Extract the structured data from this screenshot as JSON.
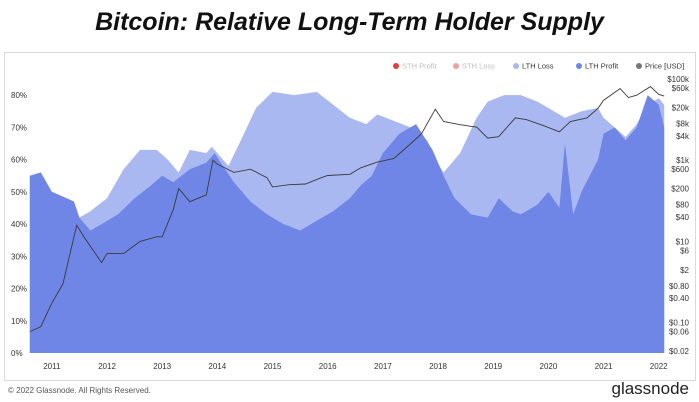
{
  "title": "Bitcoin: Relative Long-Term Holder Supply",
  "footer": {
    "copyright": "© 2022 Glassnode. All Rights Reserved.",
    "brand": "glassnode"
  },
  "watermark": "glassnode",
  "colors": {
    "sth_profit": "#e03c3c",
    "sth_loss": "#f2a0a0",
    "lth_loss": "#a9b8f1",
    "lth_profit": "#6f86e6",
    "price": "#3a3a3a"
  },
  "chart_data": {
    "type": "area",
    "title": "Bitcoin: Relative Long-Term Holder Supply",
    "legend": [
      "STH Profit",
      "STH Loss",
      "LTH Loss",
      "LTH Profit",
      "Price [USD]"
    ],
    "legend_position": "top-right",
    "x_ticks": [
      "2011",
      "2012",
      "2013",
      "2014",
      "2015",
      "2016",
      "2017",
      "2018",
      "2019",
      "2020",
      "2021",
      "2022"
    ],
    "y_left_ticks": [
      "0%",
      "10%",
      "20%",
      "30%",
      "40%",
      "50%",
      "60%",
      "70%",
      "80%"
    ],
    "y_right_ticks": [
      "$100k",
      "$60k",
      "$20k",
      "$8k",
      "$4k",
      "$1k",
      "$600",
      "$200",
      "$80",
      "$40",
      "$10",
      "$6",
      "$2",
      "$0.80",
      "$0.40",
      "$0.10",
      "$0.06",
      "$0.02"
    ],
    "y_left_range": [
      0,
      85
    ],
    "y_right_scale": "log",
    "grid": false,
    "series": [
      {
        "name": "LTH Loss",
        "type": "stacked-area",
        "points": [
          [
            2010.6,
            55
          ],
          [
            2010.8,
            56
          ],
          [
            2011.0,
            50
          ],
          [
            2011.4,
            47
          ],
          [
            2011.5,
            42
          ],
          [
            2011.7,
            44
          ],
          [
            2012.0,
            48
          ],
          [
            2012.3,
            57
          ],
          [
            2012.6,
            63
          ],
          [
            2012.9,
            63
          ],
          [
            2013.1,
            60
          ],
          [
            2013.3,
            56
          ],
          [
            2013.5,
            63
          ],
          [
            2013.8,
            62
          ],
          [
            2013.9,
            64
          ],
          [
            2014.0,
            62
          ],
          [
            2014.2,
            58
          ],
          [
            2014.4,
            65
          ],
          [
            2014.7,
            76
          ],
          [
            2015.0,
            81
          ],
          [
            2015.4,
            80
          ],
          [
            2015.8,
            81
          ],
          [
            2016.1,
            77
          ],
          [
            2016.4,
            73
          ],
          [
            2016.7,
            71
          ],
          [
            2016.9,
            74
          ],
          [
            2017.2,
            72
          ],
          [
            2017.5,
            70
          ],
          [
            2017.8,
            66
          ],
          [
            2017.95,
            60
          ],
          [
            2018.1,
            56
          ],
          [
            2018.4,
            62
          ],
          [
            2018.7,
            73
          ],
          [
            2018.9,
            78
          ],
          [
            2019.2,
            80
          ],
          [
            2019.5,
            80
          ],
          [
            2019.8,
            78
          ],
          [
            2020.0,
            76
          ],
          [
            2020.3,
            73
          ],
          [
            2020.6,
            75
          ],
          [
            2020.9,
            76
          ],
          [
            2021.0,
            73
          ],
          [
            2021.2,
            70
          ],
          [
            2021.4,
            67
          ],
          [
            2021.6,
            71
          ],
          [
            2021.8,
            77
          ],
          [
            2022.0,
            79
          ],
          [
            2022.1,
            77
          ]
        ]
      },
      {
        "name": "LTH Profit",
        "type": "stacked-area",
        "points": [
          [
            2010.6,
            55
          ],
          [
            2010.8,
            56
          ],
          [
            2011.0,
            50
          ],
          [
            2011.4,
            47
          ],
          [
            2011.5,
            42
          ],
          [
            2011.7,
            38
          ],
          [
            2011.9,
            40
          ],
          [
            2012.2,
            43
          ],
          [
            2012.5,
            48
          ],
          [
            2012.8,
            52
          ],
          [
            2013.0,
            55
          ],
          [
            2013.2,
            53
          ],
          [
            2013.5,
            57
          ],
          [
            2013.8,
            59
          ],
          [
            2013.95,
            62
          ],
          [
            2014.1,
            58
          ],
          [
            2014.3,
            53
          ],
          [
            2014.6,
            47
          ],
          [
            2014.9,
            43
          ],
          [
            2015.2,
            40
          ],
          [
            2015.5,
            38
          ],
          [
            2015.8,
            41
          ],
          [
            2016.1,
            44
          ],
          [
            2016.4,
            48
          ],
          [
            2016.6,
            52
          ],
          [
            2016.8,
            55
          ],
          [
            2017.0,
            62
          ],
          [
            2017.3,
            68
          ],
          [
            2017.6,
            71
          ],
          [
            2017.9,
            63
          ],
          [
            2018.1,
            55
          ],
          [
            2018.3,
            48
          ],
          [
            2018.6,
            43
          ],
          [
            2018.9,
            42
          ],
          [
            2019.1,
            48
          ],
          [
            2019.35,
            44
          ],
          [
            2019.5,
            43
          ],
          [
            2019.8,
            46
          ],
          [
            2020.0,
            50
          ],
          [
            2020.2,
            45
          ],
          [
            2020.3,
            65
          ],
          [
            2020.45,
            43
          ],
          [
            2020.6,
            50
          ],
          [
            2020.9,
            60
          ],
          [
            2021.0,
            68
          ],
          [
            2021.2,
            70
          ],
          [
            2021.4,
            66
          ],
          [
            2021.6,
            70
          ],
          [
            2021.8,
            80
          ],
          [
            2022.0,
            77
          ],
          [
            2022.1,
            70
          ]
        ]
      },
      {
        "name": "Price [USD]",
        "type": "line",
        "axis": "right",
        "points": [
          [
            2010.6,
            0.06
          ],
          [
            2010.8,
            0.08
          ],
          [
            2011.0,
            0.3
          ],
          [
            2011.2,
            0.9
          ],
          [
            2011.45,
            25
          ],
          [
            2011.6,
            12
          ],
          [
            2011.9,
            3
          ],
          [
            2012.0,
            5
          ],
          [
            2012.3,
            5
          ],
          [
            2012.6,
            10
          ],
          [
            2012.9,
            13
          ],
          [
            2013.0,
            13
          ],
          [
            2013.2,
            60
          ],
          [
            2013.3,
            200
          ],
          [
            2013.5,
            95
          ],
          [
            2013.8,
            140
          ],
          [
            2013.92,
            1000
          ],
          [
            2014.0,
            800
          ],
          [
            2014.3,
            500
          ],
          [
            2014.6,
            600
          ],
          [
            2014.9,
            370
          ],
          [
            2015.0,
            220
          ],
          [
            2015.3,
            250
          ],
          [
            2015.6,
            260
          ],
          [
            2015.9,
            380
          ],
          [
            2016.0,
            420
          ],
          [
            2016.4,
            450
          ],
          [
            2016.6,
            650
          ],
          [
            2016.9,
            900
          ],
          [
            2017.2,
            1100
          ],
          [
            2017.5,
            2500
          ],
          [
            2017.7,
            4500
          ],
          [
            2017.95,
            18000
          ],
          [
            2018.1,
            9000
          ],
          [
            2018.4,
            7500
          ],
          [
            2018.7,
            6500
          ],
          [
            2018.9,
            3500
          ],
          [
            2019.1,
            3800
          ],
          [
            2019.4,
            11000
          ],
          [
            2019.6,
            10000
          ],
          [
            2019.9,
            7200
          ],
          [
            2020.2,
            5000
          ],
          [
            2020.4,
            9000
          ],
          [
            2020.7,
            11000
          ],
          [
            2020.9,
            19000
          ],
          [
            2021.0,
            30000
          ],
          [
            2021.3,
            58000
          ],
          [
            2021.45,
            35000
          ],
          [
            2021.6,
            40000
          ],
          [
            2021.85,
            65000
          ],
          [
            2022.0,
            42000
          ],
          [
            2022.1,
            38000
          ]
        ]
      }
    ]
  }
}
